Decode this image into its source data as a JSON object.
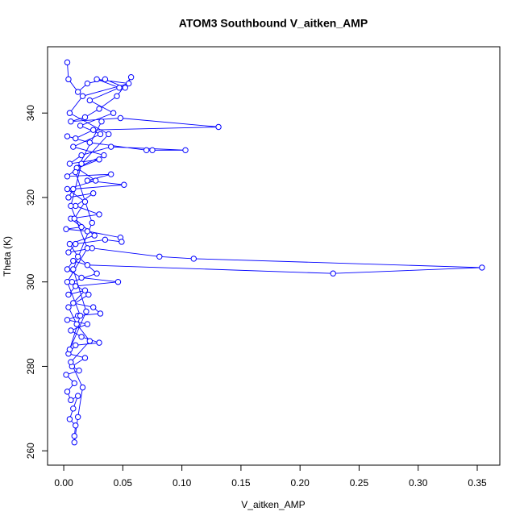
{
  "chart_data": {
    "type": "line",
    "title": "ATOM3 Southbound V_aitken_AMP",
    "x_label": "V_aitken_AMP",
    "y_label": "Theta (K)",
    "markers": true,
    "xlim": [
      -0.0137,
      0.3691
    ],
    "ylim": [
      256.6,
      355.7
    ],
    "xticks": [
      {
        "value": 0,
        "label": "0.00"
      },
      0.05,
      {
        "value": 0.1,
        "label": "0.10"
      },
      0.15,
      {
        "value": 0.2,
        "label": "0.20"
      },
      0.25,
      {
        "value": 0.3,
        "label": "0.30"
      },
      0.35
    ],
    "yticks": [
      260,
      280,
      300,
      320,
      340
    ],
    "x": [
      0.003,
      0.004,
      0.012,
      0.02,
      0.035,
      0.052,
      0.057,
      0.045,
      0.03,
      0.018,
      0.006,
      0.048,
      0.131,
      0.025,
      0.01,
      0.003,
      0.022,
      0.07,
      0.075,
      0.103,
      0.04,
      0.015,
      0.005,
      0.03,
      0.012,
      0.003,
      0.04,
      0.02,
      0.051,
      0.008,
      0.004,
      0.025,
      0.01,
      0.03,
      0.006,
      0.015,
      0.002,
      0.02,
      0.048,
      0.049,
      0.035,
      0.01,
      0.004,
      0.024,
      0.081,
      0.11,
      0.354,
      0.228,
      0.02,
      0.008,
      0.003,
      0.015,
      0.046,
      0.01,
      0.004,
      0.018,
      0.008,
      0.025,
      0.031,
      0.012,
      0.003,
      0.02,
      0.006,
      0.015,
      0.03,
      0.01,
      0.004,
      0.018,
      0.007,
      0.013,
      0.002,
      0.009,
      0.003,
      0.006,
      0.012,
      0.008,
      0.005,
      0.01,
      0.009,
      0.009,
      0.012,
      0.016,
      0.006,
      0.022,
      0.011,
      0.004,
      0.021,
      0.007,
      0.028,
      0.012,
      0.005,
      0.026,
      0.009,
      0.018,
      0.003,
      0.027,
      0.011,
      0.034,
      0.008,
      0.031,
      0.014,
      0.042,
      0.022,
      0.047,
      0.028,
      0.055,
      0.016,
      0.005,
      0.038,
      0.015,
      0.006,
      0.02,
      0.003,
      0.014,
      0.005,
      0.019,
      0.008,
      0.024,
      0.01,
      0.032
    ],
    "series": [
      {
        "name": "Theta",
        "color": "#0000ff",
        "values": [
          352,
          348,
          345,
          347,
          348,
          346,
          348.5,
          344,
          341,
          339,
          338,
          338.8,
          336.7,
          336,
          334,
          334.5,
          333,
          331.2,
          331.2,
          331.2,
          332,
          330,
          328,
          329,
          327,
          325,
          325.5,
          324,
          323,
          322,
          320,
          321,
          318,
          316,
          315,
          313,
          312.5,
          312,
          310.5,
          309.5,
          310,
          309,
          307,
          308,
          306,
          305.5,
          303.4,
          302,
          304,
          305,
          303,
          301,
          300,
          299,
          297,
          298,
          295,
          294,
          292.5,
          292,
          291,
          290,
          288.5,
          287,
          285.6,
          285,
          283,
          282,
          280,
          279,
          278,
          276,
          274,
          272,
          273,
          270,
          267.5,
          266,
          263.5,
          262,
          268,
          275,
          281,
          286,
          290,
          294,
          297,
          300,
          302,
          306,
          309,
          311,
          315,
          319,
          322,
          324,
          327,
          330,
          332,
          335,
          337,
          340,
          343,
          346,
          348,
          347,
          344,
          340,
          335,
          328,
          318,
          308,
          300,
          292,
          284,
          293,
          303,
          314,
          326,
          338
        ]
      }
    ]
  }
}
